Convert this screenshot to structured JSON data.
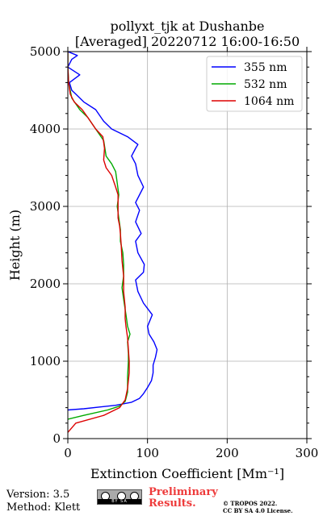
{
  "chart_data": {
    "type": "line",
    "title": "pollyxt_tjk at Dushanbe",
    "subtitle": "[Averaged] 20220712 16:00-16:50",
    "xlabel": "Extinction Coefficient [Mm⁻¹]",
    "ylabel": "Height (m)",
    "xlim": [
      0,
      300
    ],
    "ylim": [
      0,
      5000
    ],
    "xticks": [
      "0",
      "100",
      "200",
      "300"
    ],
    "yticks": [
      "0",
      "1000",
      "2000",
      "3000",
      "4000",
      "5000"
    ],
    "grid": true,
    "legend_position": "top-right",
    "series": [
      {
        "name": "355 nm",
        "color": "#0000ff",
        "points": [
          [
            0,
            370
          ],
          [
            20,
            385
          ],
          [
            60,
            430
          ],
          [
            80,
            470
          ],
          [
            90,
            520
          ],
          [
            95,
            580
          ],
          [
            100,
            660
          ],
          [
            105,
            750
          ],
          [
            107,
            850
          ],
          [
            107,
            950
          ],
          [
            110,
            1050
          ],
          [
            112,
            1150
          ],
          [
            108,
            1250
          ],
          [
            102,
            1350
          ],
          [
            100,
            1450
          ],
          [
            106,
            1600
          ],
          [
            95,
            1750
          ],
          [
            88,
            1900
          ],
          [
            85,
            2050
          ],
          [
            95,
            2150
          ],
          [
            96,
            2250
          ],
          [
            88,
            2400
          ],
          [
            85,
            2550
          ],
          [
            92,
            2650
          ],
          [
            85,
            2800
          ],
          [
            90,
            2950
          ],
          [
            85,
            3050
          ],
          [
            95,
            3250
          ],
          [
            88,
            3400
          ],
          [
            85,
            3550
          ],
          [
            80,
            3650
          ],
          [
            85,
            3750
          ],
          [
            88,
            3800
          ],
          [
            75,
            3900
          ],
          [
            55,
            4000
          ],
          [
            45,
            4100
          ],
          [
            35,
            4250
          ],
          [
            20,
            4350
          ],
          [
            10,
            4450
          ],
          [
            5,
            4500
          ],
          [
            2,
            4600
          ],
          [
            15,
            4700
          ],
          [
            0,
            4800
          ],
          [
            5,
            4900
          ],
          [
            12,
            4950
          ],
          [
            0,
            5000
          ]
        ]
      },
      {
        "name": "532 nm",
        "color": "#00aa00",
        "points": [
          [
            0,
            250
          ],
          [
            20,
            300
          ],
          [
            50,
            370
          ],
          [
            65,
            420
          ],
          [
            72,
            480
          ],
          [
            75,
            600
          ],
          [
            75,
            800
          ],
          [
            76,
            1000
          ],
          [
            76,
            1100
          ],
          [
            75,
            1250
          ],
          [
            78,
            1350
          ],
          [
            75,
            1450
          ],
          [
            73,
            1600
          ],
          [
            70,
            1800
          ],
          [
            68,
            1950
          ],
          [
            70,
            2100
          ],
          [
            70,
            2250
          ],
          [
            69,
            2400
          ],
          [
            66,
            2550
          ],
          [
            66,
            2700
          ],
          [
            64,
            2850
          ],
          [
            62,
            3000
          ],
          [
            64,
            3150
          ],
          [
            62,
            3300
          ],
          [
            60,
            3450
          ],
          [
            55,
            3550
          ],
          [
            48,
            3650
          ],
          [
            45,
            3850
          ],
          [
            35,
            4000
          ],
          [
            25,
            4150
          ],
          [
            15,
            4250
          ],
          [
            5,
            4400
          ],
          [
            1,
            4600
          ],
          [
            0,
            4800
          ],
          [
            0,
            5000
          ]
        ]
      },
      {
        "name": "1064 nm",
        "color": "#dd0000",
        "points": [
          [
            0,
            80
          ],
          [
            10,
            200
          ],
          [
            45,
            300
          ],
          [
            65,
            400
          ],
          [
            72,
            500
          ],
          [
            75,
            650
          ],
          [
            77,
            850
          ],
          [
            77,
            1000
          ],
          [
            76,
            1150
          ],
          [
            75,
            1300
          ],
          [
            73,
            1450
          ],
          [
            72,
            1550
          ],
          [
            72,
            1700
          ],
          [
            70,
            1900
          ],
          [
            70,
            2100
          ],
          [
            68,
            2300
          ],
          [
            67,
            2500
          ],
          [
            66,
            2650
          ],
          [
            65,
            2750
          ],
          [
            63,
            2850
          ],
          [
            63,
            3000
          ],
          [
            63,
            3150
          ],
          [
            60,
            3250
          ],
          [
            55,
            3400
          ],
          [
            48,
            3500
          ],
          [
            45,
            3600
          ],
          [
            46,
            3750
          ],
          [
            44,
            3900
          ],
          [
            35,
            4000
          ],
          [
            25,
            4150
          ],
          [
            18,
            4250
          ],
          [
            8,
            4350
          ],
          [
            3,
            4450
          ],
          [
            1,
            4600
          ],
          [
            0,
            4800
          ],
          [
            0,
            5000
          ]
        ]
      }
    ]
  },
  "footer": {
    "version": "Version: 3.5",
    "method": "Method: Klett",
    "cc_label": "BY  SA",
    "preliminary": [
      "Preliminary",
      "Results."
    ],
    "copyright": [
      "© TROPOS 2022.",
      "CC BY SA 4.0 License."
    ]
  }
}
